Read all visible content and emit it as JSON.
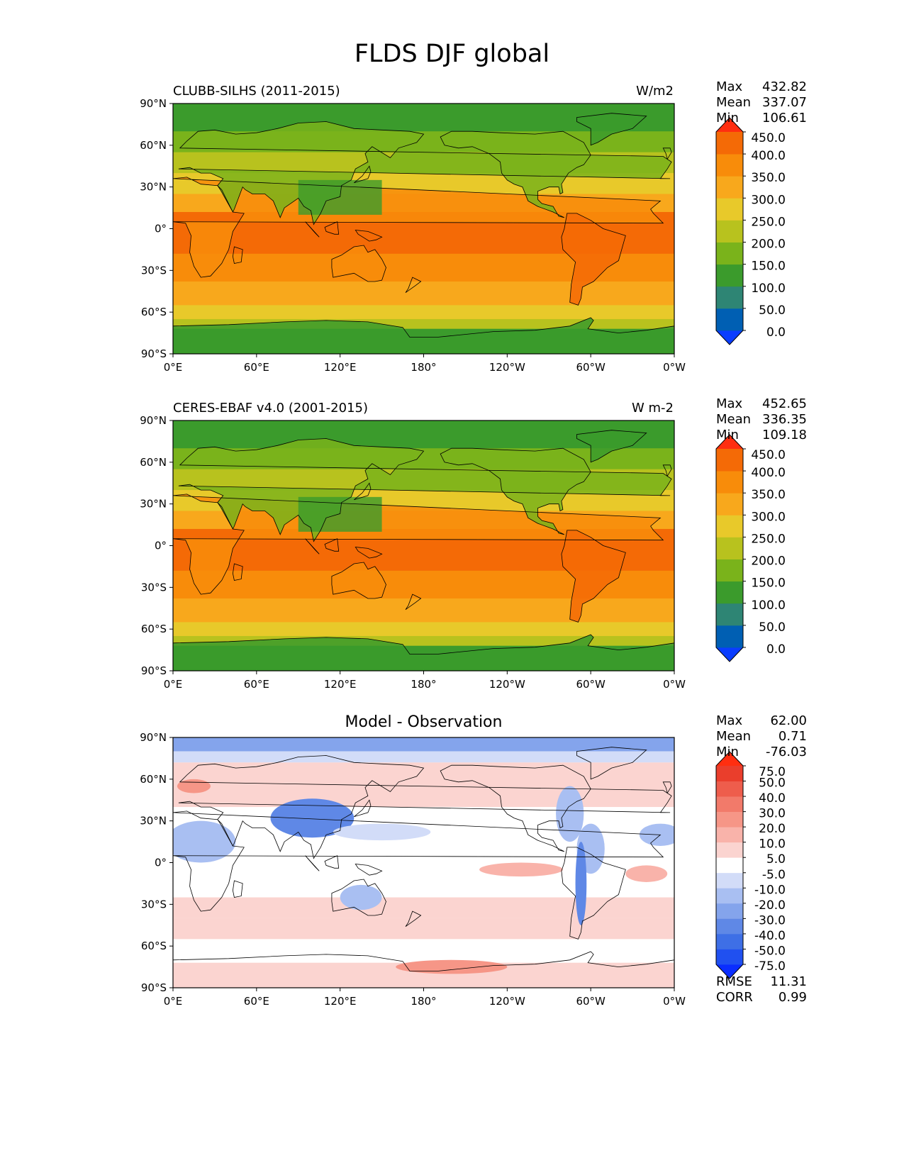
{
  "title": "FLDS DJF global",
  "lat_ticks": [
    "90°N",
    "60°N",
    "30°N",
    "0°",
    "30°S",
    "60°S",
    "90°S"
  ],
  "lon_ticks": [
    "0°E",
    "60°E",
    "120°E",
    "180°",
    "120°W",
    "60°W",
    "0°W"
  ],
  "panels": [
    {
      "left_title": "CLUBB-SILHS (2011-2015)",
      "right_title": "W/m2",
      "stats": [
        {
          "label": "Max",
          "value": "432.82"
        },
        {
          "label": "Mean",
          "value": "337.07"
        },
        {
          "label": "Min",
          "value": "106.61"
        }
      ],
      "colorbar": {
        "ticks": [
          "450.0",
          "400.0",
          "350.0",
          "300.0",
          "250.0",
          "200.0",
          "150.0",
          "100.0",
          "50.0",
          "0.0"
        ],
        "colors": [
          "#0a3dff",
          "#005fb3",
          "#2e8574",
          "#3b9b2c",
          "#7ab31b",
          "#b8c21e",
          "#e8c92a",
          "#f8a81c",
          "#f88c0a",
          "#f46a06",
          "#ff2e10"
        ]
      }
    },
    {
      "left_title": "CERES-EBAF v4.0 (2001-2015)",
      "right_title": "W m-2",
      "stats": [
        {
          "label": "Max",
          "value": "452.65"
        },
        {
          "label": "Mean",
          "value": "336.35"
        },
        {
          "label": "Min",
          "value": "109.18"
        }
      ],
      "colorbar": {
        "ticks": [
          "450.0",
          "400.0",
          "350.0",
          "300.0",
          "250.0",
          "200.0",
          "150.0",
          "100.0",
          "50.0",
          "0.0"
        ],
        "colors": [
          "#0a3dff",
          "#005fb3",
          "#2e8574",
          "#3b9b2c",
          "#7ab31b",
          "#b8c21e",
          "#e8c92a",
          "#f8a81c",
          "#f88c0a",
          "#f46a06",
          "#ff2e10"
        ]
      }
    },
    {
      "center_title": "Model - Observation",
      "stats": [
        {
          "label": "Max",
          "value": "62.00"
        },
        {
          "label": "Mean",
          "value": "0.71"
        },
        {
          "label": "Min",
          "value": "-76.03"
        }
      ],
      "extra_stats": [
        {
          "label": "RMSE",
          "value": "11.31"
        },
        {
          "label": "CORR",
          "value": "0.99"
        }
      ],
      "colorbar": {
        "ticks": [
          "75.0",
          "50.0",
          "40.0",
          "30.0",
          "20.0",
          "10.0",
          "5.0",
          "-5.0",
          "-10.0",
          "-20.0",
          "-30.0",
          "-40.0",
          "-50.0",
          "-75.0"
        ],
        "colors": [
          "#0a2dff",
          "#2050f0",
          "#3e6fe6",
          "#5f88e6",
          "#84a4ec",
          "#a9bff2",
          "#d2dcf8",
          "#ffffff",
          "#fbd4d0",
          "#f9b3aa",
          "#f69687",
          "#f27a6a",
          "#ee5d4c",
          "#ea3e2c",
          "#ff2e10"
        ]
      }
    }
  ],
  "chart_data": [
    {
      "type": "heatmap",
      "title": "CLUBB-SILHS (2011-2015)",
      "units": "W/m2",
      "variable": "FLDS",
      "season": "DJF",
      "xlim": [
        0,
        360
      ],
      "ylim": [
        -90,
        90
      ],
      "levels": [
        0,
        50,
        100,
        150,
        200,
        250,
        300,
        350,
        400,
        450
      ],
      "max": 432.82,
      "mean": 337.07,
      "min": 106.61
    },
    {
      "type": "heatmap",
      "title": "CERES-EBAF v4.0 (2001-2015)",
      "units": "W m-2",
      "variable": "FLDS",
      "season": "DJF",
      "xlim": [
        0,
        360
      ],
      "ylim": [
        -90,
        90
      ],
      "levels": [
        0,
        50,
        100,
        150,
        200,
        250,
        300,
        350,
        400,
        450
      ],
      "max": 452.65,
      "mean": 336.35,
      "min": 109.18
    },
    {
      "type": "heatmap",
      "title": "Model - Observation",
      "xlim": [
        0,
        360
      ],
      "ylim": [
        -90,
        90
      ],
      "levels": [
        -75,
        -50,
        -40,
        -30,
        -20,
        -10,
        -5,
        5,
        10,
        20,
        30,
        40,
        50,
        75
      ],
      "max": 62.0,
      "mean": 0.71,
      "min": -76.03,
      "rmse": 11.31,
      "corr": 0.99
    }
  ]
}
